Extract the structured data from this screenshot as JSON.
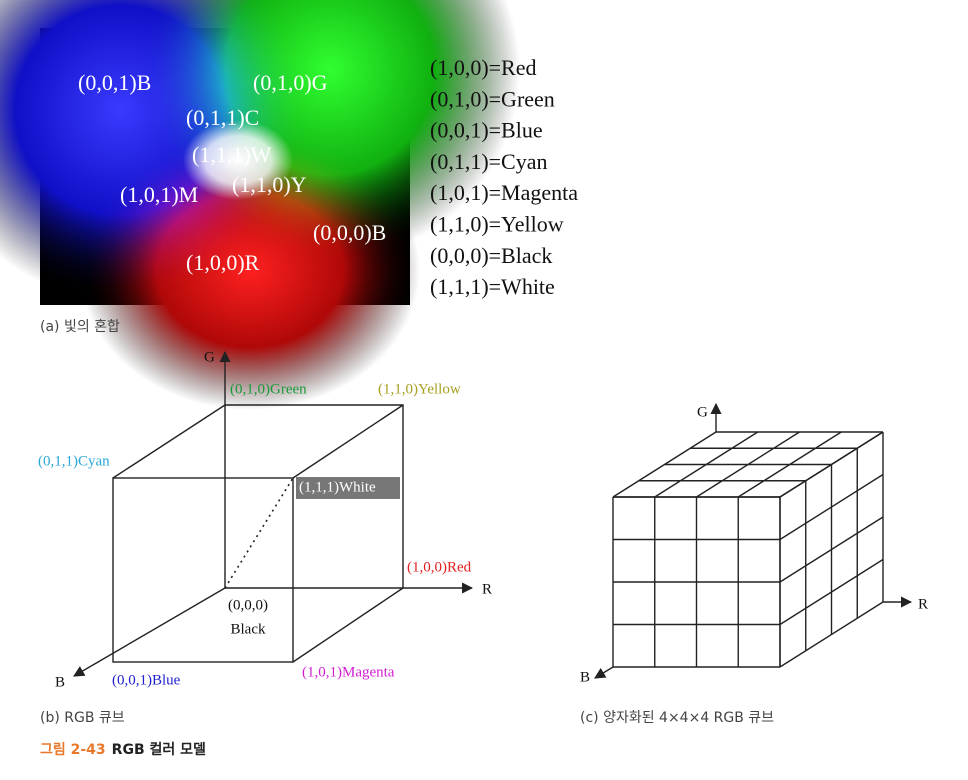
{
  "figure_a": {
    "image_labels": [
      "(0,0,1)B",
      "(0,1,0)G",
      "(0,1,1)C",
      "(1,1,1)W",
      "(1,1,0)Y",
      "(1,0,1)M",
      "(0,0,0)B",
      "(1,0,0)R"
    ],
    "legend": [
      "(1,0,0)=Red",
      "(0,1,0)=Green",
      "(0,0,1)=Blue",
      "(0,1,1)=Cyan",
      "(1,0,1)=Magenta",
      "(1,1,0)=Yellow",
      "(0,0,0)=Black",
      "(1,1,1)=White"
    ],
    "caption": "(a) 빛의 혼합"
  },
  "figure_b": {
    "axes": {
      "g": "G",
      "r": "R",
      "b": "B"
    },
    "vertices": [
      "(0,1,0)Green",
      "(1,1,0)Yellow",
      "(0,1,1)Cyan",
      "(1,1,1)White",
      "(1,0,0)Red",
      "(0,0,1)Blue",
      "(1,0,1)Magenta"
    ],
    "origin": [
      "(0,0,0)",
      "Black"
    ],
    "caption": "(b) RGB 큐브"
  },
  "figure_c": {
    "axes": {
      "g": "G",
      "r": "R",
      "b": "B"
    },
    "caption": "(c) 양자화된 4×4×4 RGB 큐브"
  },
  "figure_title": {
    "number": "그림 2-43",
    "text": "RGB 컬러 모델"
  }
}
